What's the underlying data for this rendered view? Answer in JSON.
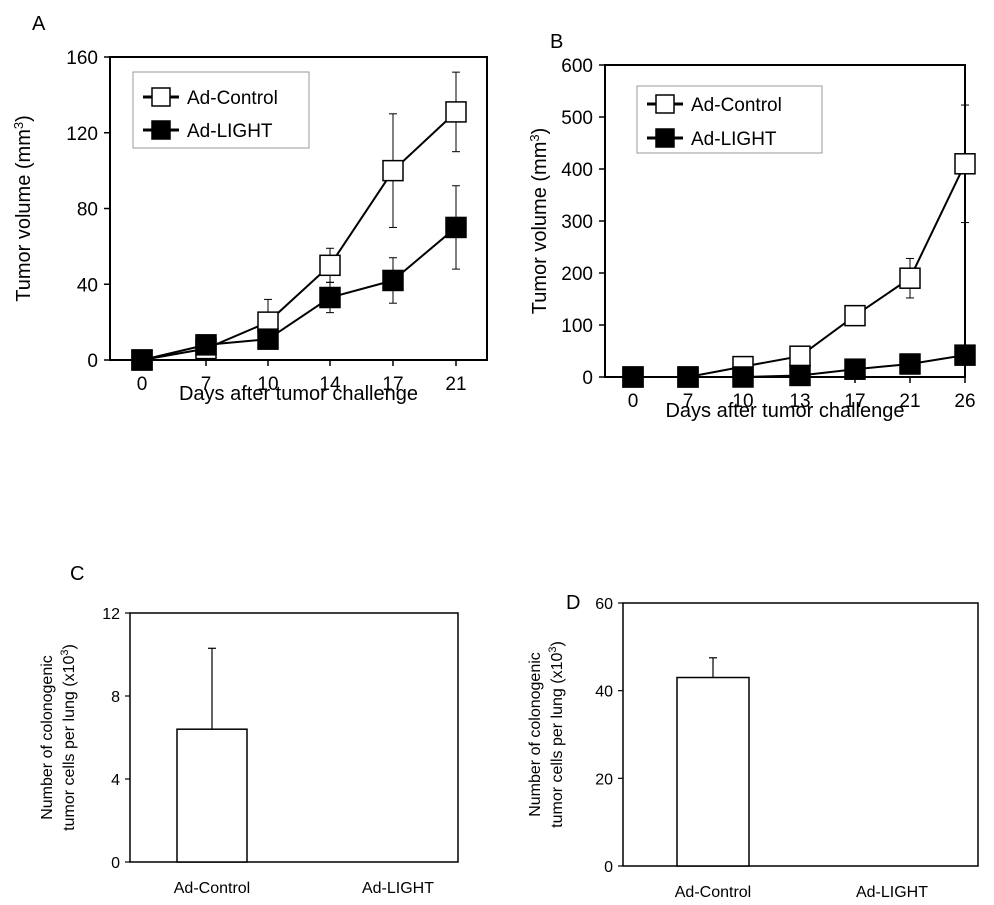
{
  "chart_data": [
    {
      "panel": "A",
      "type": "line",
      "categories": [
        "0",
        "7",
        "10",
        "14",
        "17",
        "21"
      ],
      "xlabel": "Days after tumor challenge",
      "ylabel": "Tumor volume (mm",
      "ylabel_sup": "3",
      "ylabel_end": ")",
      "ylim": [
        0,
        160
      ],
      "yticks": [
        "0",
        "40",
        "80",
        "120",
        "160"
      ],
      "legend_position": "top-left",
      "series": [
        {
          "name": "Ad-Control",
          "marker": "open-square",
          "values": [
            0,
            6,
            20,
            50,
            100,
            131
          ],
          "error": [
            0,
            0,
            12,
            9,
            30,
            21
          ]
        },
        {
          "name": "Ad-LIGHT",
          "marker": "filled-square",
          "values": [
            0,
            8,
            11,
            33,
            42,
            70
          ],
          "error": [
            0,
            0,
            0,
            8,
            12,
            22
          ]
        }
      ]
    },
    {
      "panel": "B",
      "type": "line",
      "categories": [
        "0",
        "7",
        "10",
        "13",
        "17",
        "21",
        "26"
      ],
      "xlabel": "Days after tumor challenge",
      "ylabel": "Tumor volume (mm",
      "ylabel_sup": "3",
      "ylabel_end": ")",
      "ylim": [
        0,
        600
      ],
      "yticks": [
        "0",
        "100",
        "200",
        "300",
        "400",
        "500",
        "600"
      ],
      "legend_position": "top-left",
      "series": [
        {
          "name": "Ad-Control",
          "marker": "open-square",
          "values": [
            0,
            0,
            20,
            40,
            118,
            190,
            410
          ],
          "error": [
            0,
            0,
            0,
            0,
            0,
            38,
            113
          ]
        },
        {
          "name": "Ad-LIGHT",
          "marker": "filled-square",
          "values": [
            0,
            0,
            0,
            3,
            15,
            25,
            42
          ],
          "error": [
            0,
            0,
            0,
            0,
            0,
            0,
            0
          ]
        }
      ]
    },
    {
      "panel": "C",
      "type": "bar",
      "categories": [
        "Ad-Control",
        "Ad-LIGHT"
      ],
      "values": [
        6.4,
        0
      ],
      "error": [
        3.9,
        0
      ],
      "ylabel_line1": "Number of colonogenic",
      "ylabel_line2": "tumor cells per lung (x10",
      "ylabel_sup": "3",
      "ylabel_end": ")",
      "ylim": [
        0,
        12
      ],
      "yticks": [
        "0",
        "4",
        "8",
        "12"
      ]
    },
    {
      "panel": "D",
      "type": "bar",
      "categories": [
        "Ad-Control",
        "Ad-LIGHT"
      ],
      "values": [
        43,
        0
      ],
      "error": [
        4.5,
        0
      ],
      "ylabel_line1": "Number of colonogenic",
      "ylabel_line2": "tumor cells per lung (x10",
      "ylabel_sup": "3",
      "ylabel_end": ")",
      "ylim": [
        0,
        60
      ],
      "yticks": [
        "0",
        "20",
        "40",
        "60"
      ]
    }
  ]
}
